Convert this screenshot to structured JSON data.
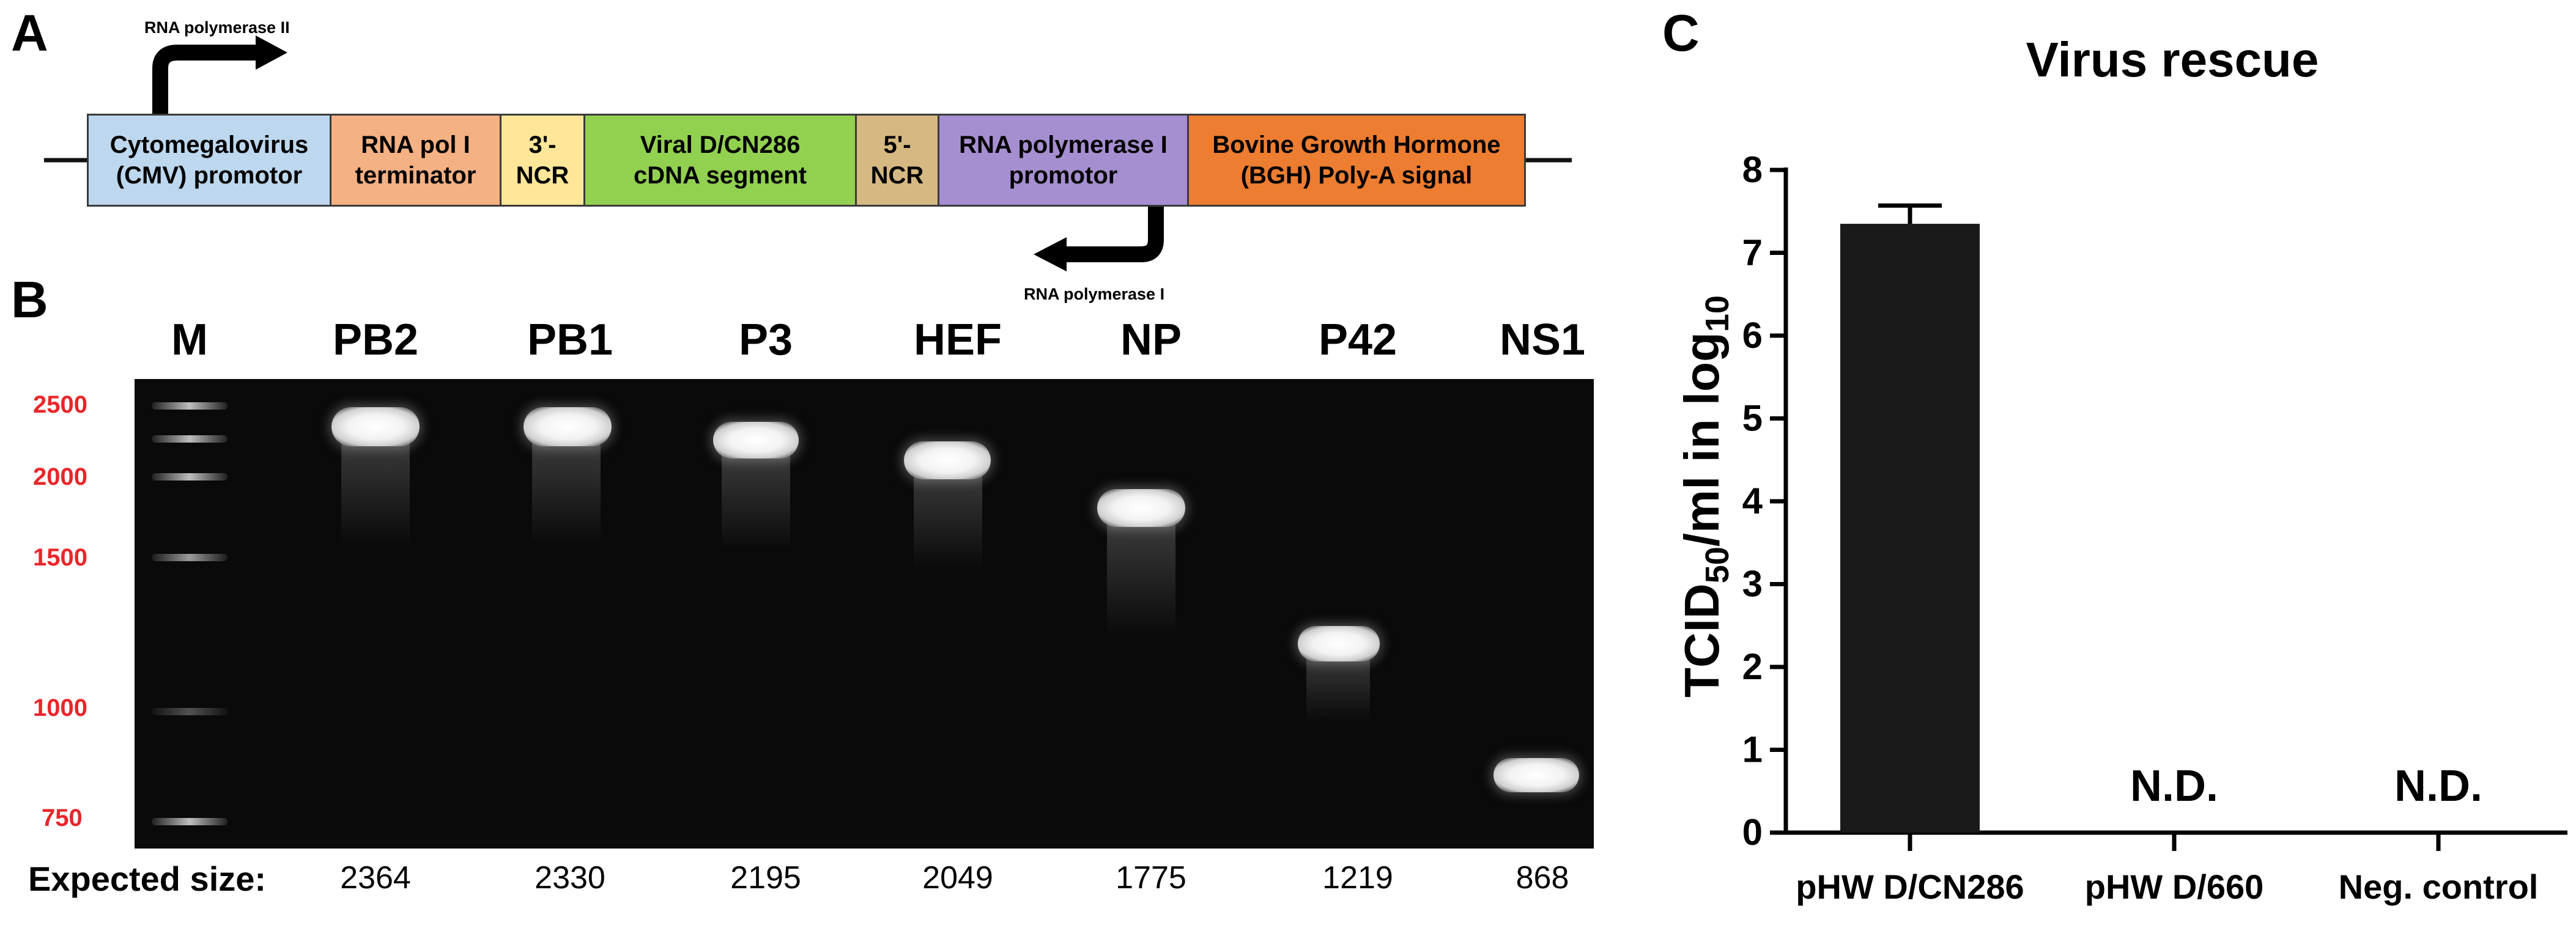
{
  "panel_a": {
    "letter": "A",
    "pol2_label": "RNA polymerase II",
    "pol1_label": "RNA polymerase I",
    "segments": [
      {
        "text": "Cytomegalovirus\n(CMV) promotor",
        "color": "#bdd7ee"
      },
      {
        "text": "RNA pol I\nterminator",
        "color": "#f4b183"
      },
      {
        "text": "3'-\nNCR",
        "color": "#ffe699"
      },
      {
        "text": "Viral D/CN286\ncDNA segment",
        "color": "#92d050"
      },
      {
        "text": "5'-\nNCR",
        "color": "#d6b883"
      },
      {
        "text": "RNA polymerase I\npromotor",
        "color": "#a68fd0"
      },
      {
        "text": "Bovine Growth Hormone\n(BGH) Poly-A signal",
        "color": "#ed7d31"
      }
    ]
  },
  "panel_b": {
    "letter": "B",
    "marker_lane": "M",
    "lanes": [
      "PB2",
      "PB1",
      "P3",
      "HEF",
      "NP",
      "P42",
      "NS1"
    ],
    "marker_sizes": [
      "2500",
      "2000",
      "1500",
      "1000",
      "750"
    ],
    "expected_label": "Expected size:",
    "expected_sizes": [
      "2364",
      "2330",
      "2195",
      "2049",
      "1775",
      "1219",
      "868"
    ]
  },
  "panel_c": {
    "letter": "C",
    "chart_data": {
      "type": "bar",
      "title": "Virus rescue",
      "ylabel_main": "TCID",
      "ylabel_sub": "50",
      "ylabel_mid": "/ml in log",
      "ylabel_sub2": "10",
      "ylim": [
        0,
        8
      ],
      "yticks": [
        "0",
        "1",
        "2",
        "3",
        "4",
        "5",
        "6",
        "7",
        "8"
      ],
      "categories": [
        "pHW D/CN286",
        "pHW D/660",
        "Neg. control"
      ],
      "values": [
        7.35,
        0,
        0
      ],
      "error": [
        0.22,
        0,
        0
      ],
      "value_labels": [
        "",
        "N.D.",
        "N.D."
      ],
      "bar_color": "#1a1a1a"
    }
  }
}
